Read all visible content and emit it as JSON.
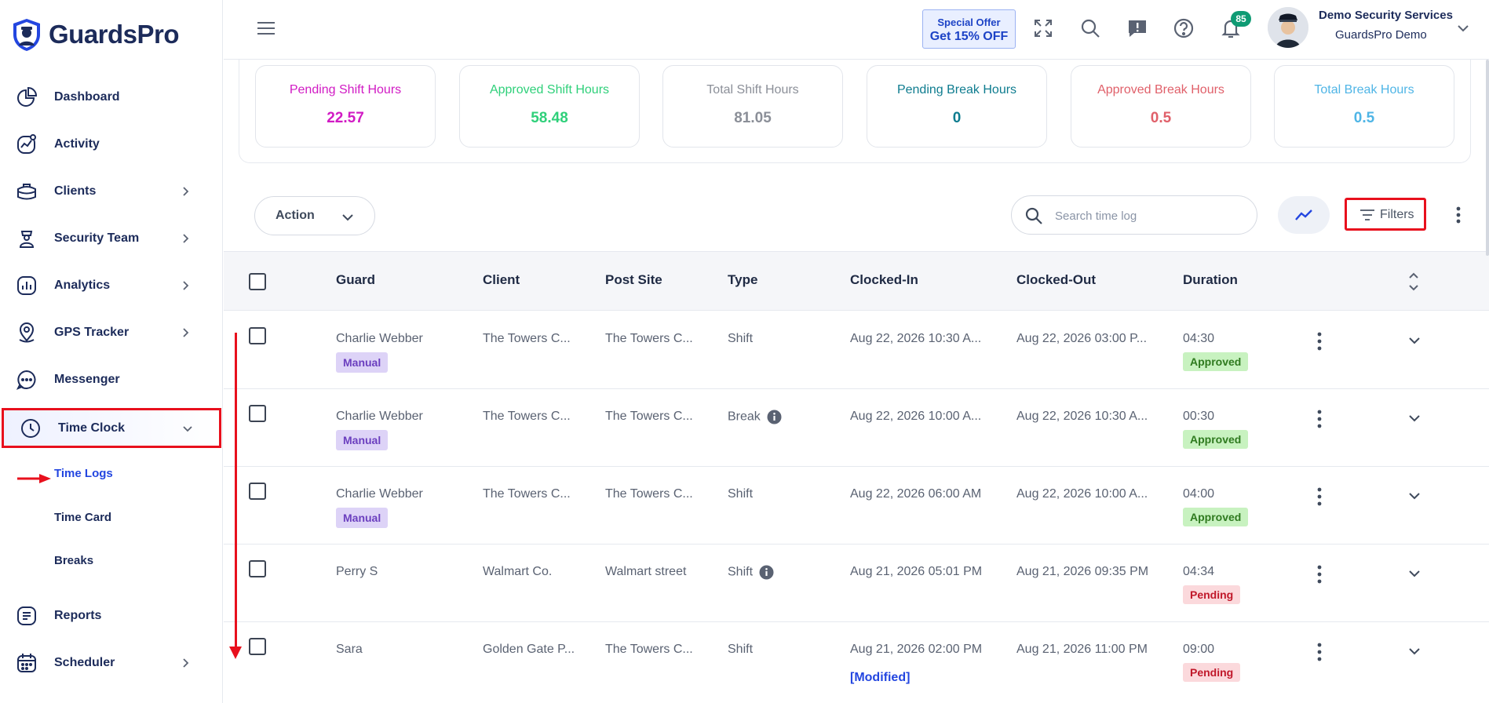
{
  "app": {
    "logo_text": "GuardsPro"
  },
  "sidebar": {
    "items": [
      {
        "label": "Dashboard",
        "icon": "pie-chart-icon",
        "chevron": false
      },
      {
        "label": "Activity",
        "icon": "activity-icon",
        "chevron": false
      },
      {
        "label": "Clients",
        "icon": "briefcase-icon",
        "chevron": true
      },
      {
        "label": "Security Team",
        "icon": "guard-icon",
        "chevron": true
      },
      {
        "label": "Analytics",
        "icon": "analytics-icon",
        "chevron": true
      },
      {
        "label": "GPS Tracker",
        "icon": "location-pin-icon",
        "chevron": true
      },
      {
        "label": "Messenger",
        "icon": "chat-icon",
        "chevron": false
      },
      {
        "label": "Time Clock",
        "icon": "clock-icon",
        "chevron": true,
        "expanded": true
      },
      {
        "label": "Reports",
        "icon": "report-icon",
        "chevron": false
      },
      {
        "label": "Scheduler",
        "icon": "calendar-icon",
        "chevron": true
      }
    ],
    "time_clock_sub": [
      "Time Logs",
      "Time Card",
      "Breaks"
    ],
    "active_sub": "Time Logs"
  },
  "header": {
    "offer_line1": "Special Offer",
    "offer_line2": "Get 15% OFF",
    "notification_count": "85",
    "user_name": "Demo Security Services",
    "user_company": "GuardsPro Demo"
  },
  "stats": [
    {
      "title": "Pending Shift Hours",
      "value": "22.57",
      "color": "#d11bc4"
    },
    {
      "title": "Approved Shift Hours",
      "value": "58.48",
      "color": "#2fd07a"
    },
    {
      "title": "Total Shift Hours",
      "value": "81.05",
      "color": "#8b8f98"
    },
    {
      "title": "Pending Break Hours",
      "value": "0",
      "color": "#0e7c8f"
    },
    {
      "title": "Approved Break Hours",
      "value": "0.5",
      "color": "#e0606a"
    },
    {
      "title": "Total Break Hours",
      "value": "0.5",
      "color": "#4fb5e6"
    }
  ],
  "toolbar": {
    "action_label": "Action",
    "search_placeholder": "Search time log",
    "filters_label": "Filters"
  },
  "table": {
    "columns": [
      "Guard",
      "Client",
      "Post Site",
      "Type",
      "Clocked-In",
      "Clocked-Out",
      "Duration"
    ],
    "rows": [
      {
        "guard": "Charlie Webber",
        "tag": "Manual",
        "client": "The Towers C...",
        "post_site": "The Towers C...",
        "type": "Shift",
        "info": false,
        "clocked_in": "Aug 22, 2026 10:30 A...",
        "clocked_out": "Aug 22, 2026 03:00 P...",
        "duration": "04:30",
        "status": "Approved",
        "modified": ""
      },
      {
        "guard": "Charlie Webber",
        "tag": "Manual",
        "client": "The Towers C...",
        "post_site": "The Towers C...",
        "type": "Break",
        "info": true,
        "clocked_in": "Aug 22, 2026 10:00 A...",
        "clocked_out": "Aug 22, 2026 10:30 A...",
        "duration": "00:30",
        "status": "Approved",
        "modified": ""
      },
      {
        "guard": "Charlie Webber",
        "tag": "Manual",
        "client": "The Towers C...",
        "post_site": "The Towers C...",
        "type": "Shift",
        "info": false,
        "clocked_in": "Aug 22, 2026 06:00 AM",
        "clocked_out": "Aug 22, 2026 10:00 A...",
        "duration": "04:00",
        "status": "Approved",
        "modified": ""
      },
      {
        "guard": "Perry S",
        "tag": "",
        "client": "Walmart Co.",
        "post_site": "Walmart street",
        "type": "Shift",
        "info": true,
        "clocked_in": "Aug 21, 2026 05:01 PM",
        "clocked_out": "Aug 21, 2026 09:35 PM",
        "duration": "04:34",
        "status": "Pending",
        "modified": ""
      },
      {
        "guard": "Sara",
        "tag": "",
        "client": "Golden Gate P...",
        "post_site": "The Towers C...",
        "type": "Shift",
        "info": false,
        "clocked_in": "Aug 21, 2026 02:00 PM",
        "clocked_out": "Aug 21, 2026 11:00 PM",
        "duration": "09:00",
        "status": "Pending",
        "modified": "[Modified]"
      }
    ]
  }
}
